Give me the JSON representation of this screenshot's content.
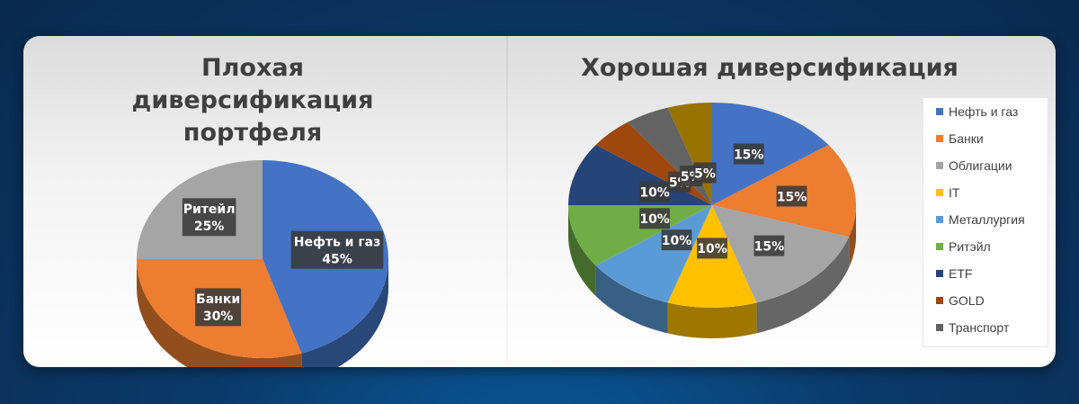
{
  "chart_data": [
    {
      "type": "pie",
      "title": "Плохая диверсификация портфеля",
      "slices": [
        {
          "label": "Нефть и газ",
          "value": 45,
          "display": "45%",
          "color": "#4472C4"
        },
        {
          "label": "Банки",
          "value": 30,
          "display": "30%",
          "color": "#ED7D31"
        },
        {
          "label": "Ритейл",
          "value": 25,
          "display": "25%",
          "color": "#A5A5A5"
        }
      ],
      "data_labels": "category and percent",
      "legend": "none"
    },
    {
      "type": "pie",
      "title": "Хорошая диверсификация",
      "slices": [
        {
          "label": "Нефть и газ",
          "value": 15,
          "display": "15%",
          "color": "#4472C4"
        },
        {
          "label": "Банки",
          "value": 15,
          "display": "15%",
          "color": "#ED7D31"
        },
        {
          "label": "Облигации",
          "value": 15,
          "display": "15%",
          "color": "#A5A5A5"
        },
        {
          "label": "IT",
          "value": 10,
          "display": "10%",
          "color": "#FFC000"
        },
        {
          "label": "Металлургия",
          "value": 10,
          "display": "10%",
          "color": "#5B9BD5"
        },
        {
          "label": "Ритэйл",
          "value": 10,
          "display": "10%",
          "color": "#70AD47"
        },
        {
          "label": "ETF",
          "value": 10,
          "display": "10%",
          "color": "#264478"
        },
        {
          "label": "GOLD",
          "value": 5,
          "display": "5%",
          "color": "#9E480E"
        },
        {
          "label": "Транспорт",
          "value": 5,
          "display": "5%",
          "color": "#636363"
        },
        {
          "label": "",
          "value": 5,
          "display": "5%",
          "color": "#997300"
        }
      ],
      "data_labels": "percent",
      "legend": "right"
    }
  ]
}
